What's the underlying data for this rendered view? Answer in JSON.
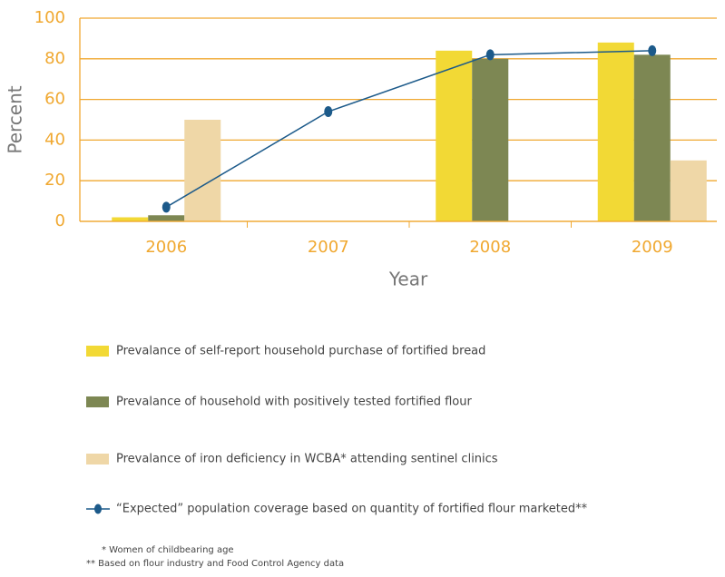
{
  "chart_data": {
    "type": "bar",
    "x_label": "Year",
    "y_label": "Percent",
    "categories": [
      "2006",
      "2007",
      "2008",
      "2009"
    ],
    "series": [
      {
        "name": "Prevalance of self-report household purchase of fortified bread",
        "color": "#f2d935",
        "type": "bar",
        "values": [
          2,
          null,
          84,
          88
        ]
      },
      {
        "name": "Prevalance of  household with positively tested fortified flour",
        "color": "#7d8753",
        "type": "bar",
        "values": [
          3,
          null,
          80,
          82
        ]
      },
      {
        "name": "Prevalance of  iron deficiency in WCBA* attending sentinel clinics",
        "color": "#efd7a7",
        "type": "bar",
        "values": [
          50,
          null,
          null,
          30
        ]
      },
      {
        "name": "“Expected” population coverage based on quantity of fortified flour marketed**",
        "color": "#1c5a8a",
        "type": "line",
        "values": [
          7,
          54,
          82,
          84
        ]
      }
    ],
    "ylim": [
      0,
      100
    ],
    "yticks": [
      0,
      20,
      40,
      60,
      80,
      100
    ],
    "grid": true,
    "axis_color": "#f0a830",
    "notes": [
      "*  Women of childbearing age",
      "** Based on flour industry and Food Control Agency data"
    ]
  }
}
